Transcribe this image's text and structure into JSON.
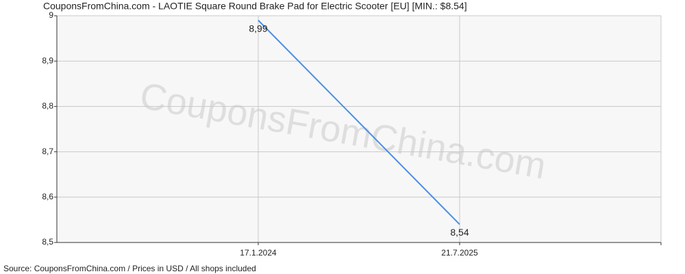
{
  "chart_data": {
    "type": "line",
    "title": "CouponsFromChina.com - LAOTIE Square Round Brake Pad for Electric Scooter [EU] [MIN.: $8.54]",
    "watermark": "CouponsFromChina.com",
    "source": "Source: CouponsFromChina.com / Prices in USD / All shops included",
    "categories": [
      "17.1.2024",
      "21.7.2025"
    ],
    "series": [
      {
        "name": "Price",
        "color": "#4a8ee6",
        "values": [
          8.99,
          8.54
        ],
        "value_labels": [
          "8,99",
          "8,54"
        ]
      }
    ],
    "ylim": [
      8.5,
      9
    ],
    "yticks": [
      {
        "value": 8.5,
        "label": "8,5"
      },
      {
        "value": 8.6,
        "label": "8,6"
      },
      {
        "value": 8.7,
        "label": "8,7"
      },
      {
        "value": 8.8,
        "label": "8,8"
      },
      {
        "value": 8.9,
        "label": "8,9"
      },
      9
    ],
    "grid": true
  }
}
